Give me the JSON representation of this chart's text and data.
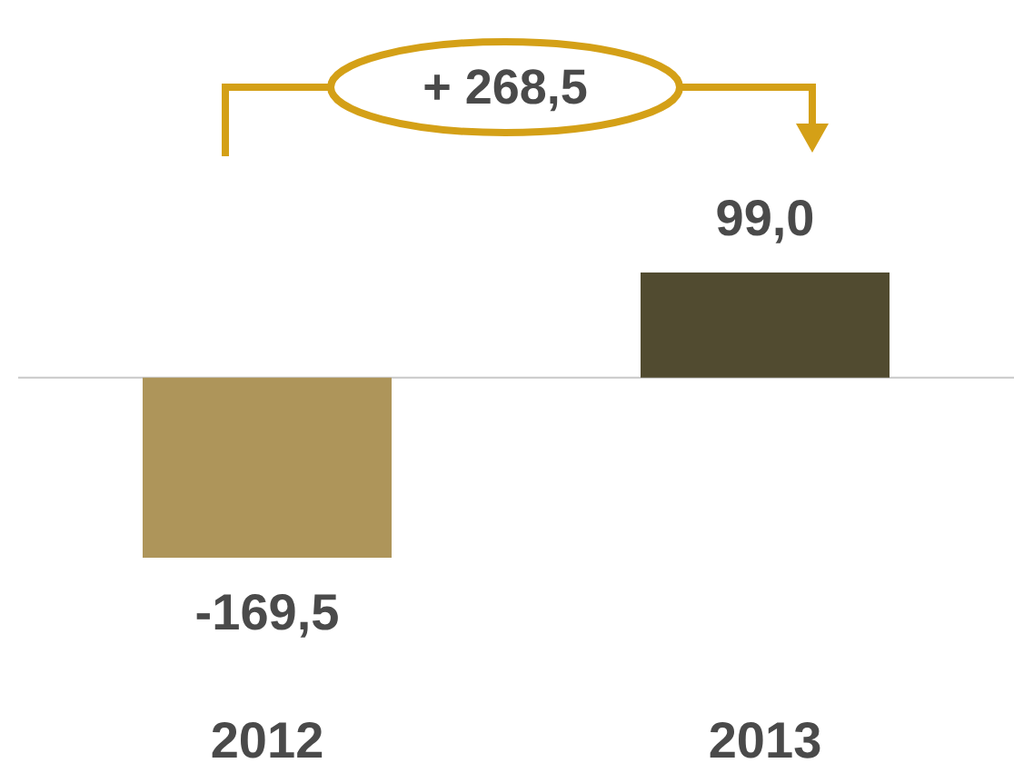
{
  "chart_data": {
    "type": "bar",
    "categories": [
      "2012",
      "2013"
    ],
    "values": [
      -169.5,
      99.0
    ],
    "colors": [
      "#ae955a",
      "#514b30"
    ],
    "value_labels": [
      "-169,5",
      "99,0"
    ],
    "annotations": [
      "+ 268,5"
    ]
  }
}
